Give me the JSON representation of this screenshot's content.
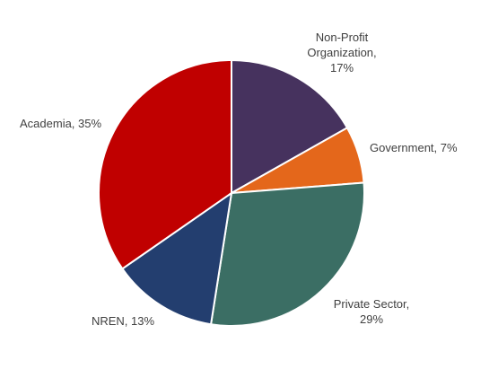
{
  "chart_data": {
    "type": "pie",
    "title": "",
    "slices": [
      {
        "name": "Non-Profit Organization",
        "value": 17,
        "label": "Non-Profit Organization, 17%",
        "color": "#46325E"
      },
      {
        "name": "Government",
        "value": 7,
        "label": "Government, 7%",
        "color": "#E4671B"
      },
      {
        "name": "Private Sector",
        "value": 29,
        "label": "Private Sector, 29%",
        "color": "#3B6E64"
      },
      {
        "name": "NREN",
        "value": 13,
        "label": "NREN, 13%",
        "color": "#233E6F"
      },
      {
        "name": "Academia",
        "value": 35,
        "label": "Academia, 35%",
        "color": "#C00000"
      }
    ],
    "legend": false
  }
}
